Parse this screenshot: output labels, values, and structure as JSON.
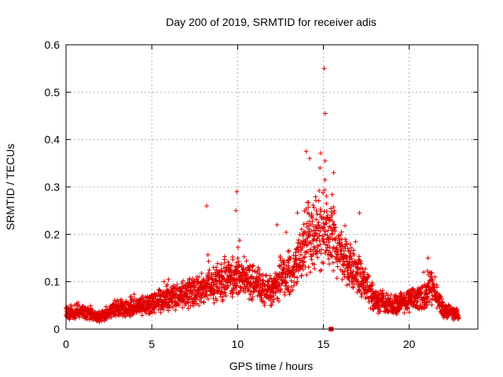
{
  "chart_data": {
    "type": "scatter",
    "title": "Day 200 of 2019, SRMTID for receiver adis",
    "xlabel": "GPS time / hours",
    "ylabel": "SRMTID / TECUs",
    "xlim": [
      0,
      24
    ],
    "ylim": [
      0,
      0.6
    ],
    "x_ticks": [
      0,
      5,
      10,
      15,
      20
    ],
    "y_ticks": [
      0,
      0.1,
      0.2,
      0.3,
      0.4,
      0.5,
      0.6
    ],
    "x_tick_labels": [
      "0",
      "5",
      "10",
      "15",
      "20"
    ],
    "y_tick_labels": [
      "0",
      "0.1",
      "0.2",
      "0.3",
      "0.4",
      "0.5",
      "0.6"
    ],
    "grid": true,
    "marker": "+",
    "marker_color": "#e00000",
    "series": [
      {
        "name": "SRMTID",
        "trend": [
          [
            0.0,
            0.035
          ],
          [
            1.0,
            0.038
          ],
          [
            2.0,
            0.025
          ],
          [
            3.0,
            0.045
          ],
          [
            4.0,
            0.045
          ],
          [
            5.0,
            0.055
          ],
          [
            6.0,
            0.065
          ],
          [
            7.0,
            0.075
          ],
          [
            8.0,
            0.085
          ],
          [
            9.0,
            0.1
          ],
          [
            10.0,
            0.115
          ],
          [
            11.0,
            0.095
          ],
          [
            12.0,
            0.08
          ],
          [
            12.5,
            0.11
          ],
          [
            13.0,
            0.115
          ],
          [
            13.5,
            0.14
          ],
          [
            14.0,
            0.19
          ],
          [
            14.5,
            0.2
          ],
          [
            15.0,
            0.22
          ],
          [
            15.5,
            0.21
          ],
          [
            16.0,
            0.15
          ],
          [
            17.0,
            0.12
          ],
          [
            17.5,
            0.09
          ],
          [
            18.0,
            0.06
          ],
          [
            19.0,
            0.05
          ],
          [
            20.0,
            0.06
          ],
          [
            21.0,
            0.07
          ],
          [
            21.3,
            0.09
          ],
          [
            22.0,
            0.04
          ],
          [
            22.9,
            0.03
          ]
        ],
        "notable_points": [
          [
            8.2,
            0.26
          ],
          [
            9.95,
            0.29
          ],
          [
            9.9,
            0.25
          ],
          [
            14.0,
            0.375
          ],
          [
            14.2,
            0.36
          ],
          [
            14.8,
            0.34
          ],
          [
            15.1,
            0.355
          ],
          [
            15.05,
            0.55
          ],
          [
            15.1,
            0.455
          ],
          [
            15.6,
            0.33
          ],
          [
            17.1,
            0.245
          ],
          [
            12.3,
            0.22
          ],
          [
            21.1,
            0.15
          ],
          [
            15.45,
            0.0
          ]
        ]
      }
    ]
  }
}
